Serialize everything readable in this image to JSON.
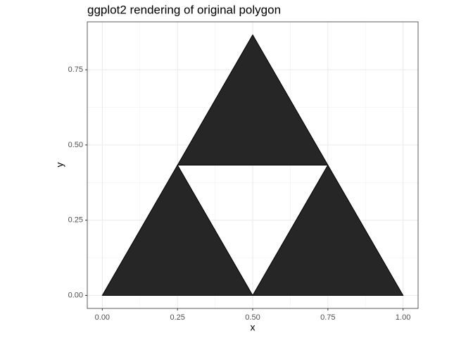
{
  "chart_data": {
    "type": "polygon",
    "title": "ggplot2 rendering of original polygon",
    "x_label": "x",
    "y_label": "y",
    "series": [
      {
        "color": "#262626",
        "outline": "#000000",
        "x": [
          0,
          1,
          0.5,
          null,
          0.25,
          0.75,
          0.5
        ],
        "y": [
          0,
          0,
          0.866,
          null,
          0.433,
          0.433,
          0
        ]
      }
    ],
    "xlim": [
      -0.05,
      1.05
    ],
    "xticks": [
      {
        "value": 0,
        "label": "0.00"
      },
      {
        "value": 0.25,
        "label": "0.25"
      },
      {
        "value": 0.5,
        "label": "0.50"
      },
      {
        "value": 0.75,
        "label": "0.75"
      },
      {
        "value": 1,
        "label": "1.00"
      }
    ],
    "ylim": [
      -0.0433,
      0.9093
    ],
    "yticks": [
      {
        "value": 0,
        "label": "0.00"
      },
      {
        "value": 0.25,
        "label": "0.25"
      },
      {
        "value": 0.5,
        "label": "0.50"
      },
      {
        "value": 0.75,
        "label": "0.75"
      }
    ],
    "grid": true
  }
}
